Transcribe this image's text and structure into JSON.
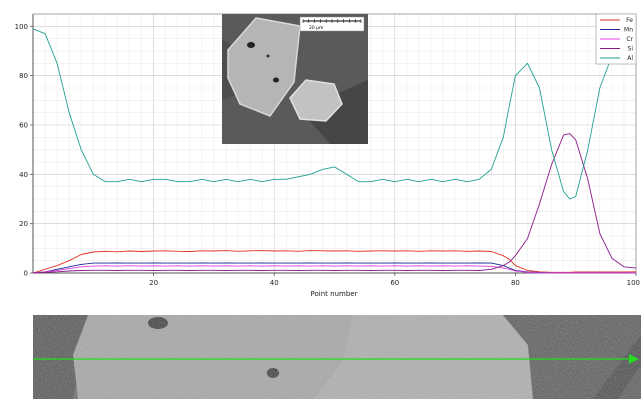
{
  "chart_data": {
    "type": "line",
    "xlabel": "Point number",
    "ylabel": "",
    "xlim": [
      0,
      100
    ],
    "ylim": [
      0,
      105
    ],
    "xticks": [
      20,
      40,
      60,
      80,
      100
    ],
    "yticks": [
      0,
      20,
      40,
      60,
      80,
      100
    ],
    "grid": true,
    "legend_position": "top-right",
    "inset": {
      "description": "SEM inset image",
      "scale_label": "20 µm"
    },
    "x": [
      0,
      2,
      4,
      6,
      8,
      10,
      12,
      14,
      16,
      18,
      20,
      22,
      24,
      26,
      28,
      30,
      32,
      34,
      36,
      38,
      40,
      42,
      44,
      46,
      48,
      50,
      52,
      54,
      56,
      58,
      60,
      62,
      64,
      66,
      68,
      70,
      72,
      74,
      76,
      78,
      79,
      80,
      82,
      84,
      86,
      88,
      89,
      90,
      92,
      94,
      96,
      98,
      100
    ],
    "series": [
      {
        "name": "Fe",
        "color": "#e03020",
        "values": [
          0,
          1.5,
          3,
          5,
          7.5,
          8.5,
          8.8,
          8.6,
          8.9,
          8.7,
          8.9,
          9.0,
          8.8,
          8.7,
          9.0,
          8.9,
          9.1,
          8.8,
          9.0,
          9.1,
          8.9,
          9.0,
          8.8,
          9.1,
          9.0,
          8.9,
          9.0,
          8.8,
          8.9,
          9.0,
          8.9,
          9.0,
          8.8,
          9.0,
          8.9,
          9.0,
          8.8,
          8.9,
          8.7,
          7.0,
          5.5,
          3.0,
          1.0,
          0.5,
          0.3,
          0.3,
          0.3,
          0.4,
          0.4,
          0.4,
          0.4,
          0.4,
          0.5
        ]
      },
      {
        "name": "Mn",
        "color": "#1a2a90",
        "values": [
          0,
          0.5,
          1.5,
          2.5,
          3.5,
          4.0,
          4.0,
          4.1,
          4.0,
          4.0,
          4.1,
          4.0,
          4.0,
          4.0,
          4.1,
          4.0,
          4.1,
          4.0,
          4.0,
          4.1,
          4.0,
          4.0,
          4.0,
          4.1,
          4.0,
          4.0,
          4.1,
          4.0,
          4.0,
          4.0,
          4.1,
          4.0,
          4.0,
          4.1,
          4.0,
          4.0,
          4.0,
          4.1,
          4.0,
          3.0,
          2.0,
          1.0,
          0.4,
          0.2,
          0.1,
          0.1,
          0.1,
          0.1,
          0.1,
          0.1,
          0.1,
          0.1,
          0.1
        ]
      },
      {
        "name": "Cr",
        "color": "#e040e0",
        "values": [
          0,
          0.5,
          1.0,
          1.8,
          2.5,
          2.8,
          2.9,
          2.8,
          2.9,
          2.8,
          2.9,
          2.8,
          2.9,
          2.8,
          2.9,
          2.8,
          2.9,
          2.8,
          2.9,
          2.8,
          2.9,
          2.8,
          2.9,
          2.8,
          2.9,
          2.8,
          2.9,
          2.8,
          2.9,
          2.8,
          2.9,
          2.8,
          2.9,
          2.8,
          2.9,
          2.8,
          2.9,
          2.8,
          2.7,
          2.0,
          1.5,
          0.8,
          0.3,
          0.1,
          0.1,
          0.1,
          0.1,
          0.1,
          0.1,
          0.1,
          0.1,
          0.1,
          0.1
        ]
      },
      {
        "name": "Si",
        "color": "#8a1a8a",
        "values": [
          0,
          0.3,
          0.5,
          0.8,
          1.0,
          1.1,
          1.1,
          1.0,
          1.1,
          1.1,
          1.0,
          1.1,
          1.1,
          1.0,
          1.1,
          1.1,
          1.0,
          1.1,
          1.1,
          1.0,
          1.1,
          1.1,
          1.0,
          1.1,
          1.1,
          1.0,
          1.1,
          1.1,
          1.0,
          1.1,
          1.1,
          1.0,
          1.1,
          1.1,
          1.0,
          1.1,
          1.1,
          1.0,
          1.5,
          3.0,
          4.5,
          7.0,
          14.0,
          28.0,
          44.0,
          56.0,
          56.5,
          54.0,
          38.0,
          16.0,
          6.0,
          2.5,
          2.0
        ]
      },
      {
        "name": "Al",
        "color": "#20a090",
        "values": [
          99,
          97,
          85,
          65,
          50,
          40,
          37,
          37,
          38,
          37,
          38,
          38,
          37,
          37,
          38,
          37,
          38,
          37,
          38,
          37,
          38,
          38,
          39,
          40,
          42,
          43,
          40,
          37,
          37,
          38,
          37,
          38,
          37,
          38,
          37,
          38,
          37,
          38,
          42,
          55,
          68,
          80,
          85,
          75,
          50,
          33,
          30,
          31,
          50,
          75,
          88,
          92,
          93
        ]
      }
    ]
  }
}
